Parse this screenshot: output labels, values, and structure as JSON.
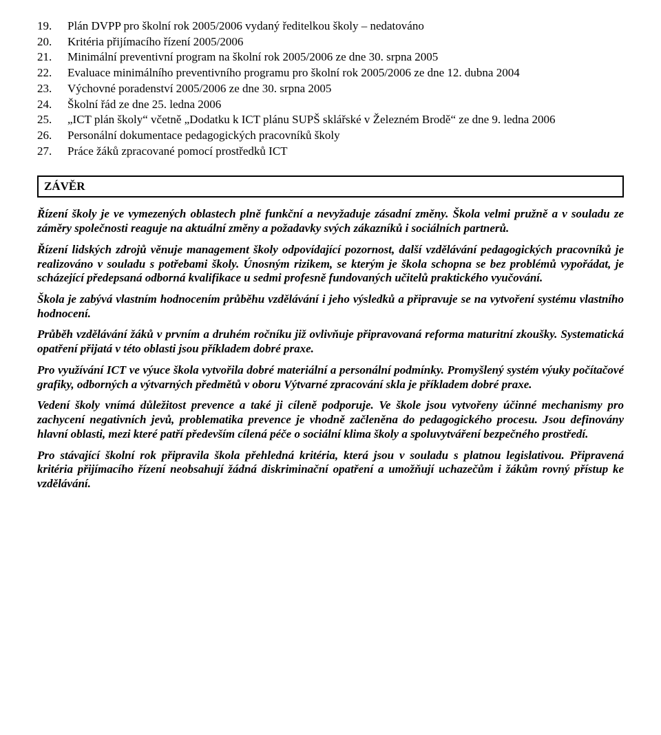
{
  "list": {
    "items": [
      {
        "num": "19.",
        "text": "Plán DVPP pro školní rok 2005/2006 vydaný ředitelkou školy – nedatováno"
      },
      {
        "num": "20.",
        "text": "Kritéria přijímacího řízení 2005/2006"
      },
      {
        "num": "21.",
        "text": "Minimální preventivní program na školní rok 2005/2006 ze dne 30. srpna 2005"
      },
      {
        "num": "22.",
        "text": "Evaluace minimálního preventivního programu pro školní rok 2005/2006 ze dne 12. dubna 2004"
      },
      {
        "num": "23.",
        "text": "Výchovné poradenství 2005/2006 ze dne 30. srpna 2005"
      },
      {
        "num": "24.",
        "text": "Školní řád ze dne 25. ledna 2006"
      },
      {
        "num": "25.",
        "text": "„ICT plán školy“ včetně „Dodatku k ICT plánu SUPŠ sklářské v Železném Brodě“ ze dne 9. ledna 2006"
      },
      {
        "num": "26.",
        "text": "Personální dokumentace pedagogických pracovníků školy"
      },
      {
        "num": "27.",
        "text": "Práce žáků zpracované pomocí prostředků ICT"
      }
    ]
  },
  "zaver": {
    "title": "ZÁVĚR",
    "paras": [
      "Řízení školy je ve vymezených oblastech plně funkční a nevyžaduje zásadní změny. Škola velmi pružně a v souladu ze záměry společnosti reaguje na aktuální změny a požadavky svých zákazníků i sociálních partnerů.",
      "Řízení lidských zdrojů věnuje management školy odpovídající pozornost, další vzdělávání pedagogických pracovníků je realizováno v souladu s potřebami školy. Únosným rizikem, se kterým je škola schopna se bez problémů vypořádat, je scházející předepsaná odborná kvalifikace u sedmi profesně fundovaných učitelů praktického vyučování.",
      "Škola je zabývá vlastním hodnocením průběhu vzdělávání i jeho výsledků a připravuje se na vytvoření systému vlastního hodnocení.",
      "Průběh vzdělávání žáků v prvním a druhém ročníku již ovlivňuje připravovaná reforma maturitní zkoušky. Systematická opatření přijatá v této oblasti jsou příkladem dobré praxe.",
      "Pro využívání ICT ve výuce škola vytvořila dobré materiální a personální podmínky. Promyšlený systém výuky počítačové grafiky, odborných a výtvarných předmětů v oboru Výtvarné zpracování skla je příkladem dobré praxe.",
      "Vedení školy vnímá důležitost prevence a také ji cíleně podporuje. Ve škole jsou vytvořeny účinné mechanismy pro zachycení negativních jevů, problematika prevence je vhodně začleněna do pedagogického procesu. Jsou definovány hlavní oblasti, mezi které patří především cílená péče o sociální klima školy a spoluvytváření bezpečného prostředí.",
      "Pro stávající školní rok připravila škola přehledná kritéria, která jsou v souladu s platnou legislativou. Připravená kritéria přijímacího řízení neobsahují žádná diskriminační opatření a umožňují uchazečům i žákům rovný přístup ke vzdělávání."
    ]
  }
}
